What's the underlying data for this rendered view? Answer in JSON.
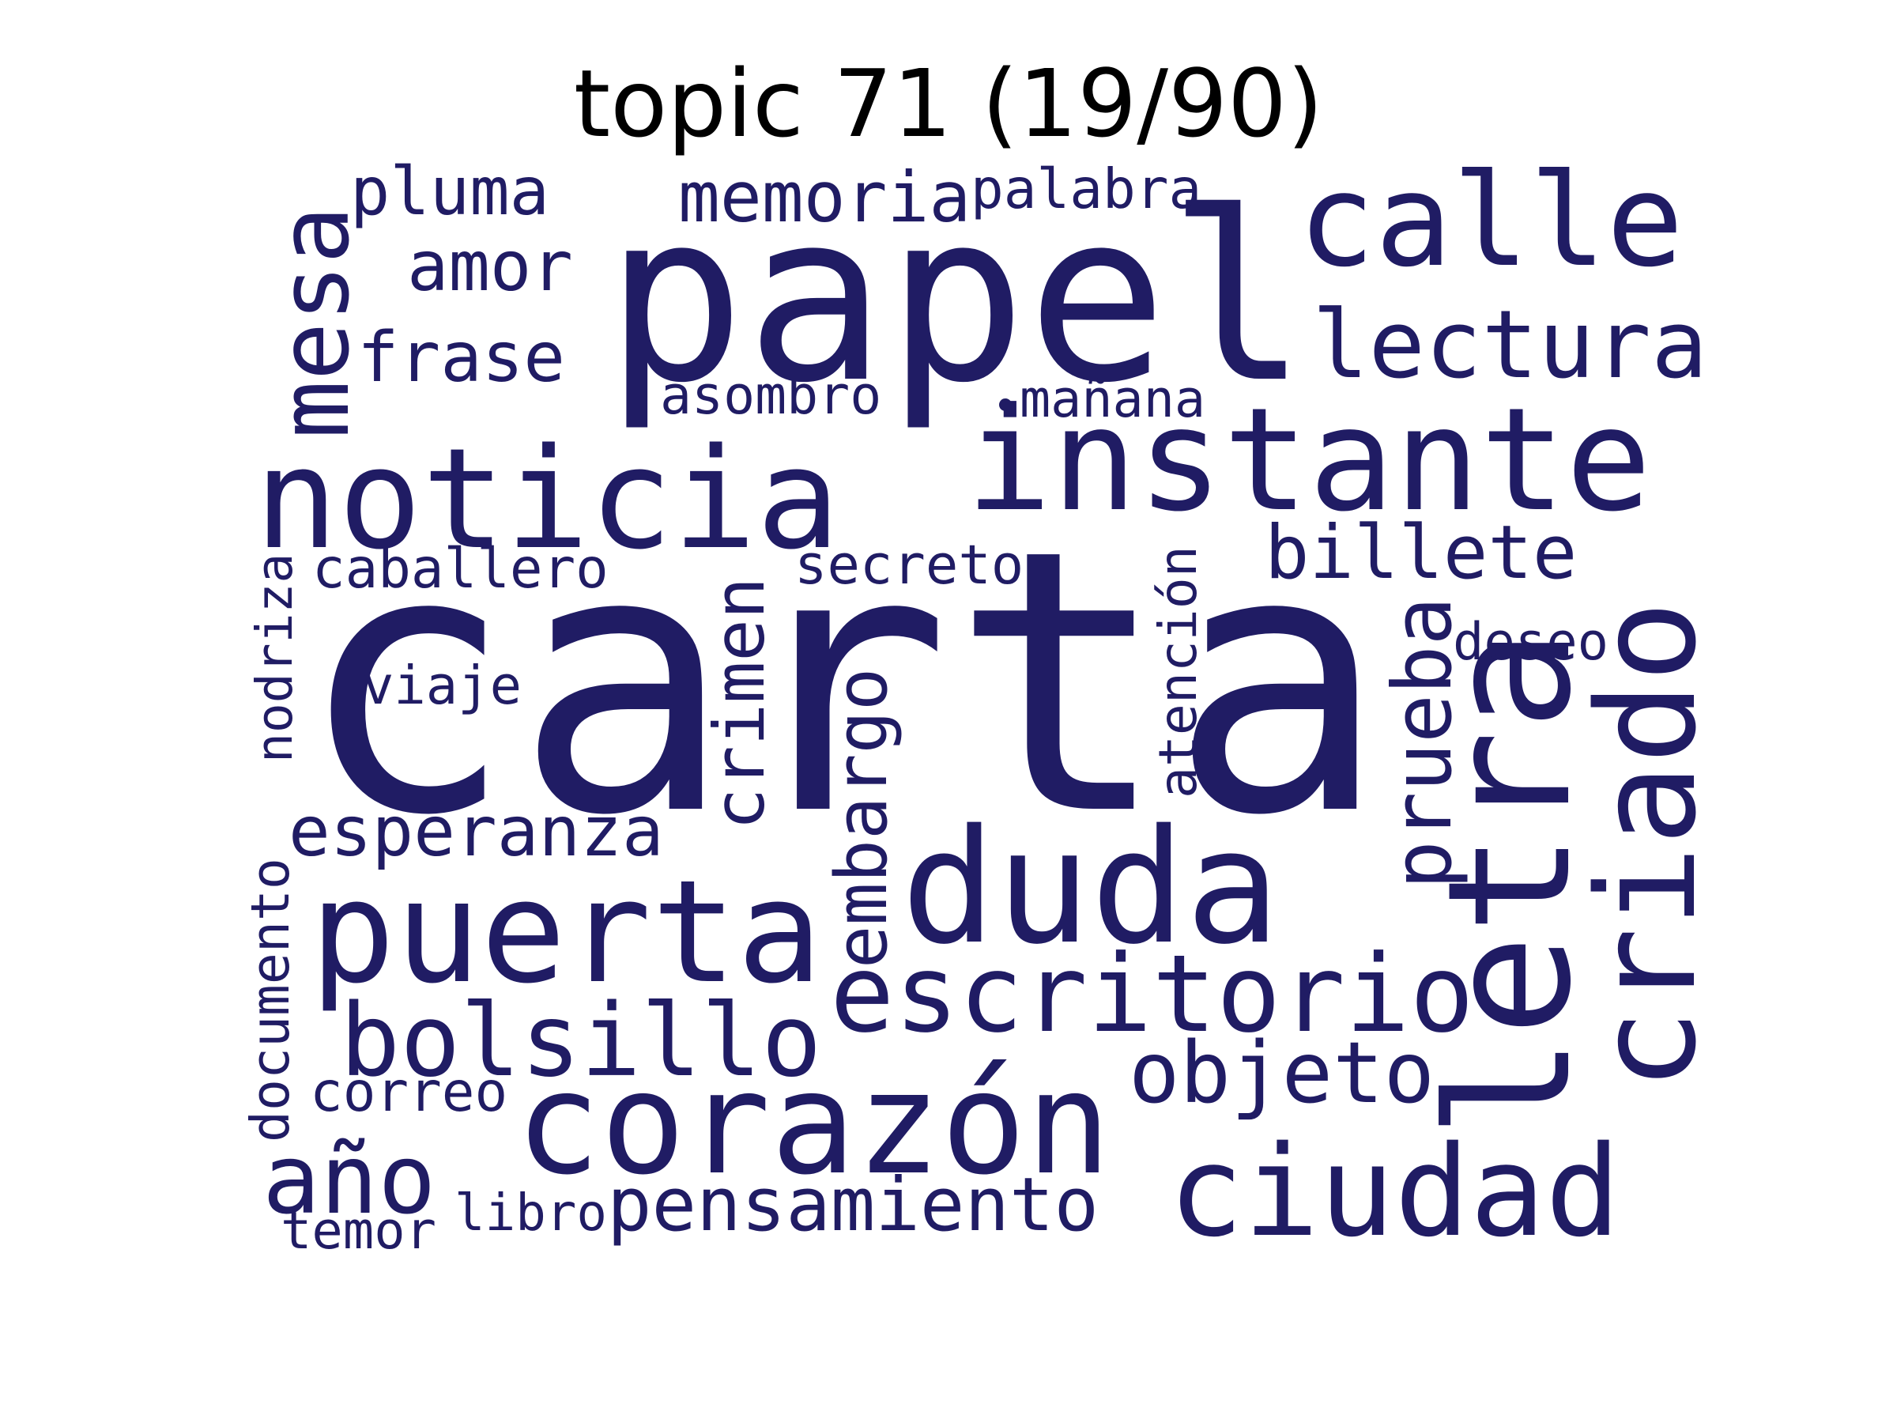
{
  "title": "topic 71 (19/90)",
  "colors": {
    "word": "#201c64",
    "background": "#ffffff",
    "title": "#000000"
  },
  "words": [
    {
      "text": "carta"
    },
    {
      "text": "papel"
    },
    {
      "text": "instante"
    },
    {
      "text": "noticia"
    },
    {
      "text": "calle"
    },
    {
      "text": "duda"
    },
    {
      "text": "puerta"
    },
    {
      "text": "letra"
    },
    {
      "text": "criado"
    },
    {
      "text": "corazón"
    },
    {
      "text": "escritorio"
    },
    {
      "text": "ciudad"
    },
    {
      "text": "bolsillo"
    },
    {
      "text": "lectura"
    },
    {
      "text": "mesa"
    },
    {
      "text": "año"
    },
    {
      "text": "billete"
    },
    {
      "text": "objeto"
    },
    {
      "text": "pensamiento"
    },
    {
      "text": "esperanza"
    },
    {
      "text": "memoria"
    },
    {
      "text": "frase"
    },
    {
      "text": "pluma"
    },
    {
      "text": "amor"
    },
    {
      "text": "crimen"
    },
    {
      "text": "embargo"
    },
    {
      "text": "prueba"
    },
    {
      "text": "caballero"
    },
    {
      "text": "secreto"
    },
    {
      "text": "palabra"
    },
    {
      "text": "asombro"
    },
    {
      "text": "mañana"
    },
    {
      "text": "viaje"
    },
    {
      "text": "deseo"
    },
    {
      "text": "atención"
    },
    {
      "text": "nodriza"
    },
    {
      "text": "documento"
    },
    {
      "text": "correo"
    },
    {
      "text": "temor"
    },
    {
      "text": "libro"
    }
  ]
}
